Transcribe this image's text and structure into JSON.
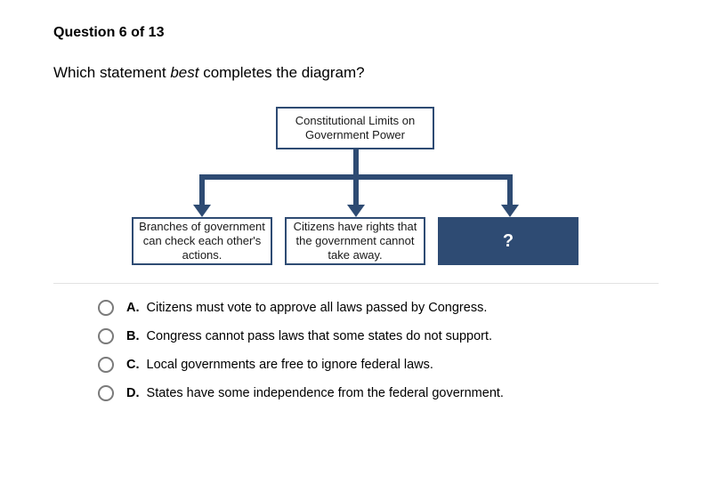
{
  "header": "Question 6 of 13",
  "prompt_pre": "Which statement ",
  "prompt_em": "best",
  "prompt_post": " completes the diagram?",
  "diagram": {
    "accent_color": "#2e4b73",
    "top_box": "Constitutional Limits on Government Power",
    "child_boxes": [
      "Branches of government can check each other's actions.",
      "Citizens have rights that the government cannot take away.",
      "?"
    ]
  },
  "options": [
    {
      "letter": "A.",
      "text": "Citizens must vote to approve all laws passed by Congress."
    },
    {
      "letter": "B.",
      "text": "Congress cannot pass laws that some states do not support."
    },
    {
      "letter": "C.",
      "text": "Local governments are free to ignore federal laws."
    },
    {
      "letter": "D.",
      "text": "States have some independence from the federal government."
    }
  ]
}
